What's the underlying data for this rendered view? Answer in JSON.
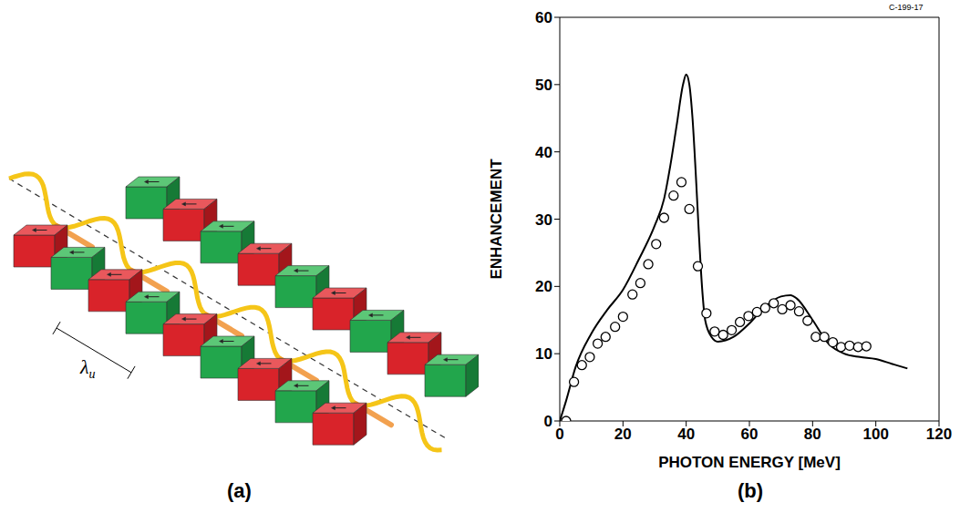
{
  "diagram": {
    "label": "(a)",
    "period_label": "λu"
  },
  "chart_data": {
    "type": "line",
    "label": "(b)",
    "annotation": "C-199-17",
    "x_label": "PHOTON ENERGY [MeV]",
    "y_label": "ENHANCEMENT",
    "xlim": [
      0,
      120
    ],
    "xticks": [
      0,
      20,
      40,
      60,
      80,
      100,
      120
    ],
    "ylim": [
      0,
      60
    ],
    "yticks": [
      0,
      10,
      20,
      30,
      40,
      50,
      60
    ],
    "grid": false,
    "series": [
      {
        "type": "line",
        "color": "#000000",
        "line_style": "solid",
        "marker": "none",
        "x": [
          0,
          2,
          5,
          10,
          15,
          20,
          25,
          30,
          33,
          35,
          37,
          39,
          40,
          41,
          42,
          43,
          44,
          45,
          46,
          48,
          50,
          55,
          60,
          65,
          70,
          73,
          75,
          80,
          85,
          90,
          95,
          100,
          105,
          110
        ],
        "values": [
          0,
          3,
          8,
          13,
          16.5,
          19.5,
          24,
          29,
          33,
          38,
          44,
          50,
          51.5,
          50,
          45,
          37,
          28,
          20,
          15,
          12.5,
          11.8,
          12.5,
          14.5,
          17,
          18.5,
          18.7,
          18.2,
          15,
          11.5,
          10,
          9.5,
          9.2,
          8.5,
          7.8
        ]
      },
      {
        "type": "scatter",
        "color": "#000000",
        "marker": "open_circle",
        "x": [
          2,
          4.5,
          7,
          9.5,
          12,
          14.5,
          17.5,
          20,
          23,
          25.5,
          28,
          30.5,
          33,
          36,
          38.5,
          41,
          43.7,
          46.4,
          49,
          51.7,
          54.4,
          57,
          59.7,
          62.4,
          65,
          67.7,
          70.4,
          73,
          75.7,
          78.4,
          81,
          83.7,
          86.4,
          89,
          91.7,
          94.4,
          97
        ],
        "values": [
          0,
          5.8,
          8.3,
          9.5,
          11.5,
          12.5,
          14,
          15.5,
          18.8,
          20.5,
          23.3,
          26.3,
          30.2,
          33.5,
          35.5,
          31.5,
          23,
          16,
          13.3,
          12.8,
          13.5,
          14.7,
          15.6,
          16.2,
          16.8,
          17.5,
          16.6,
          17.2,
          16.3,
          14.9,
          12.5,
          12.5,
          11.7,
          11,
          11.2,
          11,
          11.1
        ]
      }
    ]
  }
}
